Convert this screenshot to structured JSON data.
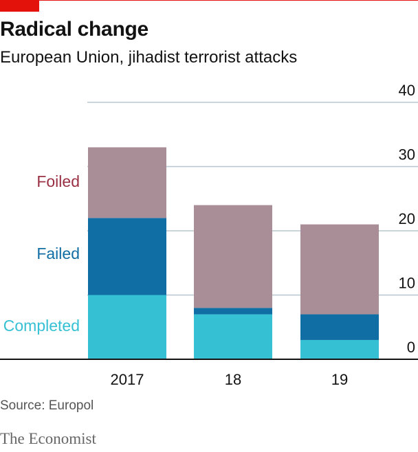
{
  "header": {
    "title": "Radical change",
    "subtitle": "European Union, jihadist terrorist attacks"
  },
  "footer": {
    "source": "Source: Europol",
    "brand": "The Economist"
  },
  "colors": {
    "accent": "#e3120b",
    "completed": "#36c0d4",
    "failed": "#106ea4",
    "foiled": "#a98d97",
    "foiled_label": "#9a3043",
    "grid": "#b7c6cf",
    "axis": "#121212"
  },
  "chart_data": {
    "type": "bar",
    "stacked": true,
    "categories": [
      "2017",
      "18",
      "19"
    ],
    "series": [
      {
        "name": "Completed",
        "values": [
          10,
          7,
          3
        ]
      },
      {
        "name": "Failed",
        "values": [
          12,
          1,
          4
        ]
      },
      {
        "name": "Foiled",
        "values": [
          11,
          16,
          14
        ]
      }
    ],
    "ylim": [
      0,
      40
    ],
    "yticks": [
      0,
      10,
      20,
      30,
      40
    ],
    "ytick_labels": [
      "0",
      "10",
      "20",
      "30",
      "40"
    ],
    "grid": true,
    "y_axis_position": "right",
    "legend_placement": "left, inline labels"
  }
}
